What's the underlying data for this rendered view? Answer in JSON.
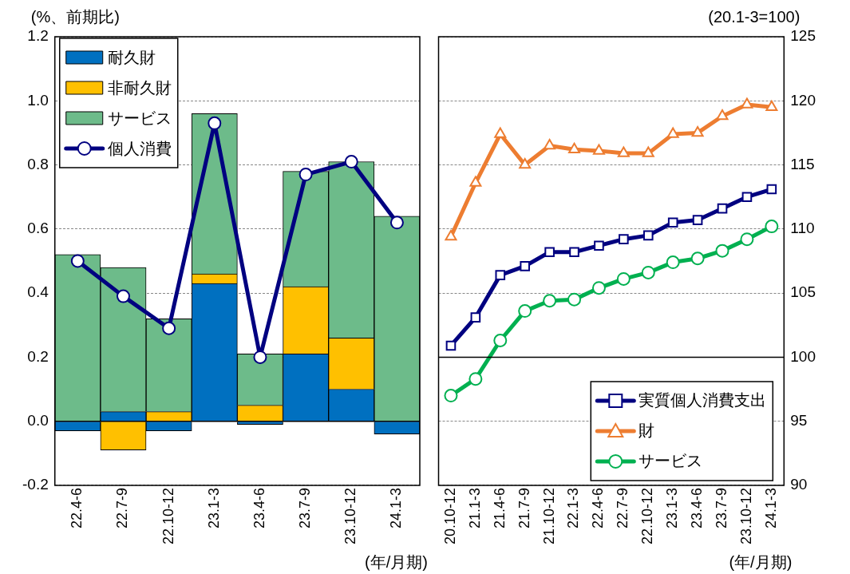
{
  "chart_data": [
    {
      "type": "bar",
      "stacked": true,
      "ylabel": "(%、前期比)",
      "xlabel": "(年/月期)",
      "categories": [
        "22.4-6",
        "22.7-9",
        "22.10-12",
        "23.1-3",
        "23.4-6",
        "23.7-9",
        "23.10-12",
        "24.1-3"
      ],
      "ylim": [
        -0.2,
        1.2
      ],
      "yticks": [
        {
          "value": -0.2,
          "label": "-0.2"
        },
        {
          "value": 0,
          "label": "0.0"
        },
        {
          "value": 0.2,
          "label": "0.2"
        },
        {
          "value": 0.4,
          "label": "0.4"
        },
        {
          "value": 0.6,
          "label": "0.6"
        },
        {
          "value": 0.8,
          "label": "0.8"
        },
        {
          "value": 1,
          "label": "1.0"
        },
        {
          "value": 1.2,
          "label": "1.2"
        }
      ],
      "grid": "y",
      "legend": "top left",
      "ref_lines": [
        {
          "axis": "y",
          "value": 0,
          "color": "#000000"
        }
      ],
      "series": [
        {
          "name": "耐久財",
          "color": "#0070c0",
          "values": [
            -0.03,
            0.03,
            -0.03,
            0.43,
            -0.01,
            0.21,
            0.1,
            -0.04
          ]
        },
        {
          "name": "非耐久財",
          "color": "#ffc000",
          "values": [
            0,
            -0.09,
            0.03,
            0.03,
            0.05,
            0.21,
            0.16,
            0
          ]
        },
        {
          "name": "サービス",
          "color": "#6dbb8a",
          "values": [
            0.52,
            0.45,
            0.29,
            0.5,
            0.16,
            0.36,
            0.55,
            0.64
          ]
        },
        {
          "name": "個人消費",
          "type": "line",
          "color": "#000080",
          "marker": "circle",
          "values": [
            0.5,
            0.39,
            0.29,
            0.93,
            0.2,
            0.77,
            0.81,
            0.62
          ]
        }
      ]
    },
    {
      "type": "line",
      "y2label": "(20.1-3=100)",
      "xlabel": "(年/月期)",
      "categories": [
        "20.10-12",
        "21.1-3",
        "21.4-6",
        "21.7-9",
        "21.10-12",
        "22.1-3",
        "22.4-6",
        "22.7-9",
        "22.10-12",
        "23.1-3",
        "23.4-6",
        "23.7-9",
        "23.10-12",
        "24.1-3"
      ],
      "y2lim": [
        90,
        125
      ],
      "y2ticks": [
        90,
        95,
        100,
        105,
        110,
        115,
        120,
        125
      ],
      "grid": "y",
      "legend": "bottom right",
      "ref_lines": [
        {
          "axis": "y2",
          "value": 100,
          "color": "#000000"
        }
      ],
      "series": [
        {
          "name": "実質個人消費支出",
          "axis": "y2",
          "color": "#000080",
          "marker": "square",
          "values": [
            100.9,
            103.1,
            106.4,
            107.1,
            108.2,
            108.2,
            108.7,
            109.2,
            109.5,
            110.5,
            110.7,
            111.6,
            112.5,
            113.1
          ]
        },
        {
          "name": "財",
          "axis": "y2",
          "color": "#ed7d31",
          "marker": "triangle",
          "values": [
            109.4,
            113.6,
            117.4,
            115.0,
            116.5,
            116.2,
            116.1,
            115.9,
            115.9,
            117.4,
            117.5,
            118.8,
            119.7,
            119.5
          ]
        },
        {
          "name": "サービス",
          "axis": "y2",
          "color": "#00b050",
          "marker": "circle",
          "values": [
            97.0,
            98.3,
            101.3,
            103.6,
            104.4,
            104.5,
            105.4,
            106.1,
            106.6,
            107.4,
            107.7,
            108.3,
            109.2,
            110.2
          ]
        }
      ]
    }
  ]
}
